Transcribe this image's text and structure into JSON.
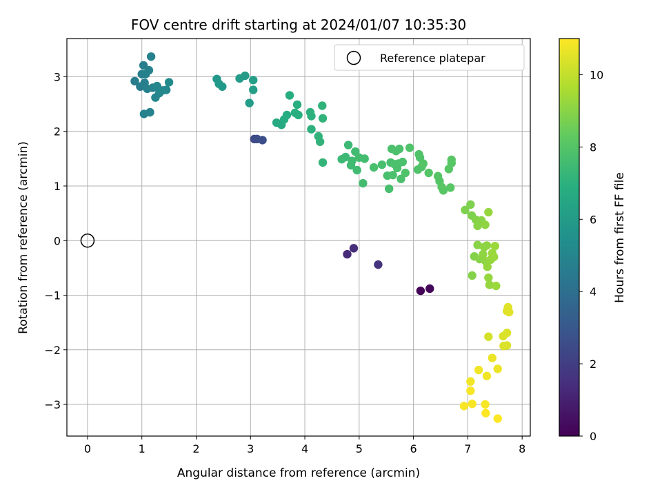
{
  "chart_data": {
    "type": "scatter",
    "title": "FOV centre drift starting at 2024/01/07 10:35:30",
    "xlabel": "Angular distance from reference (arcmin)",
    "ylabel": "Rotation from reference (arcmin)",
    "xlim": [
      -0.38,
      8.15
    ],
    "ylim": [
      -3.58,
      3.7
    ],
    "xticks": [
      0,
      1,
      2,
      3,
      4,
      5,
      6,
      7,
      8
    ],
    "yticks": [
      -3,
      -2,
      -1,
      0,
      1,
      2,
      3
    ],
    "xtick_labels": [
      "0",
      "1",
      "2",
      "3",
      "4",
      "5",
      "6",
      "7",
      "8"
    ],
    "ytick_labels": [
      "−3",
      "−2",
      "−1",
      "0",
      "1",
      "2",
      "3"
    ],
    "grid": true,
    "legend": {
      "placement": "top-right",
      "entries": [
        "Reference platepar"
      ]
    },
    "reference_point": {
      "name": "Reference platepar",
      "x": 0,
      "y": 0
    },
    "colorbar": {
      "label": "Hours from first FF file",
      "colormap": "viridis",
      "range": [
        0,
        11
      ],
      "ticks": [
        0,
        2,
        4,
        6,
        8,
        10
      ],
      "tick_labels": [
        "0",
        "2",
        "4",
        "6",
        "8",
        "10"
      ]
    },
    "points": [
      {
        "x": 6.13,
        "y": -0.92,
        "c": 0.1
      },
      {
        "x": 6.3,
        "y": -0.88,
        "c": 0.2
      },
      {
        "x": 4.78,
        "y": -0.25,
        "c": 1.3
      },
      {
        "x": 4.9,
        "y": -0.14,
        "c": 1.4
      },
      {
        "x": 5.35,
        "y": -0.44,
        "c": 1.6
      },
      {
        "x": 3.07,
        "y": 1.86,
        "c": 2.4
      },
      {
        "x": 3.12,
        "y": 1.86,
        "c": 2.5
      },
      {
        "x": 3.22,
        "y": 1.84,
        "c": 2.6
      },
      {
        "x": 0.87,
        "y": 2.92,
        "c": 4.6
      },
      {
        "x": 0.97,
        "y": 2.82,
        "c": 4.6
      },
      {
        "x": 1.0,
        "y": 3.05,
        "c": 4.7
      },
      {
        "x": 1.03,
        "y": 3.21,
        "c": 4.7
      },
      {
        "x": 1.05,
        "y": 2.89,
        "c": 4.7
      },
      {
        "x": 1.07,
        "y": 3.05,
        "c": 4.8
      },
      {
        "x": 1.1,
        "y": 2.78,
        "c": 4.8
      },
      {
        "x": 1.13,
        "y": 3.12,
        "c": 4.8
      },
      {
        "x": 1.17,
        "y": 3.37,
        "c": 4.8
      },
      {
        "x": 1.04,
        "y": 2.32,
        "c": 4.9
      },
      {
        "x": 1.15,
        "y": 2.35,
        "c": 4.9
      },
      {
        "x": 1.2,
        "y": 2.8,
        "c": 4.9
      },
      {
        "x": 1.25,
        "y": 2.62,
        "c": 5.0
      },
      {
        "x": 1.28,
        "y": 2.83,
        "c": 5.0
      },
      {
        "x": 1.32,
        "y": 2.7,
        "c": 5.0
      },
      {
        "x": 1.38,
        "y": 2.75,
        "c": 5.1
      },
      {
        "x": 1.45,
        "y": 2.76,
        "c": 5.1
      },
      {
        "x": 1.5,
        "y": 2.9,
        "c": 5.2
      },
      {
        "x": 2.38,
        "y": 2.96,
        "c": 5.8
      },
      {
        "x": 2.42,
        "y": 2.87,
        "c": 5.9
      },
      {
        "x": 2.48,
        "y": 2.82,
        "c": 5.9
      },
      {
        "x": 2.8,
        "y": 2.97,
        "c": 6.0
      },
      {
        "x": 2.9,
        "y": 3.02,
        "c": 6.0
      },
      {
        "x": 2.98,
        "y": 2.52,
        "c": 6.0
      },
      {
        "x": 3.05,
        "y": 2.94,
        "c": 6.1
      },
      {
        "x": 3.05,
        "y": 2.76,
        "c": 6.1
      },
      {
        "x": 3.48,
        "y": 2.16,
        "c": 6.7
      },
      {
        "x": 3.57,
        "y": 2.12,
        "c": 6.7
      },
      {
        "x": 3.62,
        "y": 2.22,
        "c": 6.8
      },
      {
        "x": 3.67,
        "y": 2.3,
        "c": 6.8
      },
      {
        "x": 3.72,
        "y": 2.66,
        "c": 6.8
      },
      {
        "x": 3.82,
        "y": 2.34,
        "c": 6.9
      },
      {
        "x": 3.86,
        "y": 2.49,
        "c": 6.9
      },
      {
        "x": 3.88,
        "y": 2.3,
        "c": 6.9
      },
      {
        "x": 4.1,
        "y": 2.35,
        "c": 7.0
      },
      {
        "x": 4.12,
        "y": 2.28,
        "c": 7.0
      },
      {
        "x": 4.12,
        "y": 2.04,
        "c": 7.0
      },
      {
        "x": 4.25,
        "y": 1.91,
        "c": 7.1
      },
      {
        "x": 4.28,
        "y": 1.81,
        "c": 7.1
      },
      {
        "x": 4.32,
        "y": 2.47,
        "c": 7.1
      },
      {
        "x": 4.33,
        "y": 2.24,
        "c": 7.1
      },
      {
        "x": 4.33,
        "y": 1.43,
        "c": 7.2
      },
      {
        "x": 4.68,
        "y": 1.49,
        "c": 7.4
      },
      {
        "x": 4.75,
        "y": 1.53,
        "c": 7.4
      },
      {
        "x": 4.8,
        "y": 1.75,
        "c": 7.4
      },
      {
        "x": 4.85,
        "y": 1.38,
        "c": 7.5
      },
      {
        "x": 4.87,
        "y": 1.46,
        "c": 7.5
      },
      {
        "x": 4.93,
        "y": 1.63,
        "c": 7.5
      },
      {
        "x": 4.96,
        "y": 1.29,
        "c": 7.5
      },
      {
        "x": 5.0,
        "y": 1.52,
        "c": 7.6
      },
      {
        "x": 5.07,
        "y": 1.05,
        "c": 7.6
      },
      {
        "x": 5.1,
        "y": 1.5,
        "c": 7.6
      },
      {
        "x": 5.27,
        "y": 1.34,
        "c": 7.7
      },
      {
        "x": 5.42,
        "y": 1.39,
        "c": 7.7
      },
      {
        "x": 5.52,
        "y": 1.19,
        "c": 7.7
      },
      {
        "x": 5.55,
        "y": 0.95,
        "c": 7.7
      },
      {
        "x": 5.58,
        "y": 1.43,
        "c": 7.7
      },
      {
        "x": 5.6,
        "y": 1.68,
        "c": 7.8
      },
      {
        "x": 5.62,
        "y": 1.2,
        "c": 7.8
      },
      {
        "x": 5.65,
        "y": 1.4,
        "c": 7.8
      },
      {
        "x": 5.68,
        "y": 1.64,
        "c": 7.8
      },
      {
        "x": 5.7,
        "y": 1.33,
        "c": 7.8
      },
      {
        "x": 5.72,
        "y": 1.41,
        "c": 7.8
      },
      {
        "x": 5.74,
        "y": 1.68,
        "c": 7.8
      },
      {
        "x": 5.77,
        "y": 1.13,
        "c": 7.8
      },
      {
        "x": 5.8,
        "y": 1.44,
        "c": 7.8
      },
      {
        "x": 5.85,
        "y": 1.24,
        "c": 7.9
      },
      {
        "x": 5.93,
        "y": 1.7,
        "c": 7.9
      },
      {
        "x": 6.08,
        "y": 1.3,
        "c": 7.9
      },
      {
        "x": 6.1,
        "y": 1.58,
        "c": 7.9
      },
      {
        "x": 6.12,
        "y": 1.52,
        "c": 7.9
      },
      {
        "x": 6.15,
        "y": 1.35,
        "c": 7.9
      },
      {
        "x": 6.18,
        "y": 1.41,
        "c": 8.0
      },
      {
        "x": 6.28,
        "y": 1.24,
        "c": 8.0
      },
      {
        "x": 6.45,
        "y": 1.18,
        "c": 8.0
      },
      {
        "x": 6.48,
        "y": 1.09,
        "c": 8.0
      },
      {
        "x": 6.52,
        "y": 0.98,
        "c": 8.1
      },
      {
        "x": 6.55,
        "y": 0.92,
        "c": 8.1
      },
      {
        "x": 6.65,
        "y": 1.31,
        "c": 8.1
      },
      {
        "x": 6.68,
        "y": 0.97,
        "c": 8.1
      },
      {
        "x": 6.7,
        "y": 1.48,
        "c": 8.1
      },
      {
        "x": 6.7,
        "y": 1.42,
        "c": 8.1
      },
      {
        "x": 6.95,
        "y": 0.56,
        "c": 8.8
      },
      {
        "x": 7.05,
        "y": 0.66,
        "c": 8.8
      },
      {
        "x": 7.07,
        "y": 0.46,
        "c": 8.8
      },
      {
        "x": 7.08,
        "y": -0.64,
        "c": 8.9
      },
      {
        "x": 7.12,
        "y": -0.29,
        "c": 8.9
      },
      {
        "x": 7.15,
        "y": 0.38,
        "c": 8.9
      },
      {
        "x": 7.18,
        "y": 0.27,
        "c": 9.0
      },
      {
        "x": 7.18,
        "y": -0.08,
        "c": 9.0
      },
      {
        "x": 7.22,
        "y": -0.34,
        "c": 9.0
      },
      {
        "x": 7.25,
        "y": 0.37,
        "c": 9.0
      },
      {
        "x": 7.28,
        "y": -0.25,
        "c": 9.1
      },
      {
        "x": 7.3,
        "y": -0.12,
        "c": 9.1
      },
      {
        "x": 7.32,
        "y": 0.29,
        "c": 9.1
      },
      {
        "x": 7.33,
        "y": -0.38,
        "c": 9.1
      },
      {
        "x": 7.35,
        "y": -0.09,
        "c": 9.1
      },
      {
        "x": 7.36,
        "y": -0.48,
        "c": 9.2
      },
      {
        "x": 7.38,
        "y": 0.52,
        "c": 9.2
      },
      {
        "x": 7.38,
        "y": -0.68,
        "c": 9.2
      },
      {
        "x": 7.4,
        "y": -0.81,
        "c": 9.2
      },
      {
        "x": 7.42,
        "y": -0.35,
        "c": 9.2
      },
      {
        "x": 7.45,
        "y": -0.23,
        "c": 9.3
      },
      {
        "x": 7.48,
        "y": -0.3,
        "c": 9.3
      },
      {
        "x": 7.5,
        "y": -0.1,
        "c": 9.3
      },
      {
        "x": 7.52,
        "y": -0.83,
        "c": 9.3
      },
      {
        "x": 7.38,
        "y": -1.76,
        "c": 10.3
      },
      {
        "x": 7.65,
        "y": -1.75,
        "c": 10.4
      },
      {
        "x": 7.66,
        "y": -1.93,
        "c": 10.4
      },
      {
        "x": 7.72,
        "y": -1.92,
        "c": 10.4
      },
      {
        "x": 7.72,
        "y": -1.69,
        "c": 10.4
      },
      {
        "x": 7.72,
        "y": -1.29,
        "c": 10.5
      },
      {
        "x": 7.74,
        "y": -1.22,
        "c": 10.5
      },
      {
        "x": 7.76,
        "y": -1.31,
        "c": 10.5
      },
      {
        "x": 7.45,
        "y": -2.15,
        "c": 10.7
      },
      {
        "x": 7.55,
        "y": -2.35,
        "c": 10.7
      },
      {
        "x": 7.2,
        "y": -2.37,
        "c": 10.8
      },
      {
        "x": 7.35,
        "y": -2.48,
        "c": 10.8
      },
      {
        "x": 7.05,
        "y": -2.58,
        "c": 10.8
      },
      {
        "x": 7.05,
        "y": -2.75,
        "c": 10.9
      },
      {
        "x": 6.93,
        "y": -3.03,
        "c": 10.9
      },
      {
        "x": 7.08,
        "y": -2.99,
        "c": 10.9
      },
      {
        "x": 7.32,
        "y": -3.0,
        "c": 10.9
      },
      {
        "x": 7.33,
        "y": -3.16,
        "c": 11.0
      },
      {
        "x": 7.55,
        "y": -3.26,
        "c": 11.0
      }
    ]
  }
}
